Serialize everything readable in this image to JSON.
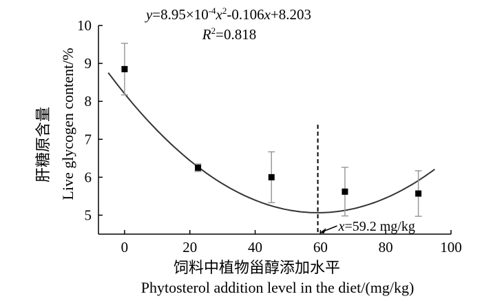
{
  "chart_data": {
    "type": "scatter",
    "equation": {
      "y": "y",
      "rhs_a": "=8.95×10",
      "exp": "-4",
      "rhs_b": "x",
      "sq": "2",
      "rhs_c": "-0.106",
      "rhs_d": "x",
      "rhs_e": "+8.203"
    },
    "r2": {
      "r": "R",
      "exp": "2",
      "rest": "=0.818"
    },
    "ylabel_cn": "肝糖原含量",
    "ylabel_en": "Live glycogen content/%",
    "xlabel_cn": "饲料中植物甾醇添加水平",
    "xlabel_en": "Phytosterol addition level in the diet/(mg/kg)",
    "x_ticks": [
      0,
      20,
      40,
      60,
      80,
      100
    ],
    "y_ticks": [
      5,
      6,
      7,
      8,
      9,
      10
    ],
    "xlim": [
      -8,
      100
    ],
    "ylim": [
      4.5,
      10
    ],
    "points": [
      {
        "x": 0,
        "y": 8.85,
        "err": 0.68
      },
      {
        "x": 22.5,
        "y": 6.25,
        "err": 0.1
      },
      {
        "x": 45,
        "y": 6.0,
        "err": 0.67
      },
      {
        "x": 67.5,
        "y": 5.62,
        "err": 0.64
      },
      {
        "x": 90,
        "y": 5.57,
        "err": 0.6
      }
    ],
    "fit": {
      "a": 0.000895,
      "b": -0.106,
      "c": 8.203,
      "x_from": -5,
      "x_to": 95
    },
    "optimum": {
      "x": 59.2,
      "label_var": "x",
      "label_rest": "=59.2 mg/kg"
    }
  }
}
